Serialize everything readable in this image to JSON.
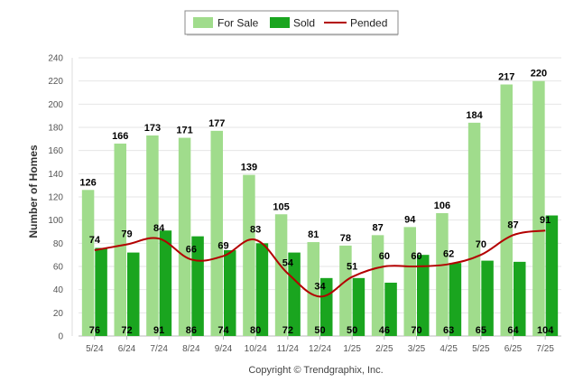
{
  "chart_data": {
    "type": "bar",
    "categories": [
      "5/24",
      "6/24",
      "7/24",
      "8/24",
      "9/24",
      "10/24",
      "11/24",
      "12/24",
      "1/25",
      "2/25",
      "3/25",
      "4/25",
      "5/25",
      "6/25",
      "7/25"
    ],
    "series": [
      {
        "name": "For Sale",
        "kind": "bar",
        "color": "#a0dc8c",
        "values": [
          126,
          166,
          173,
          171,
          177,
          139,
          105,
          81,
          78,
          87,
          94,
          106,
          184,
          217,
          220
        ]
      },
      {
        "name": "Sold",
        "kind": "bar",
        "color": "#1aa51f",
        "values": [
          76,
          72,
          91,
          86,
          74,
          80,
          72,
          50,
          50,
          46,
          70,
          63,
          65,
          64,
          104
        ]
      },
      {
        "name": "Pended",
        "kind": "line",
        "color": "#b30000",
        "values": [
          74,
          79,
          84,
          66,
          69,
          83,
          54,
          34,
          51,
          60,
          60,
          62,
          70,
          87,
          91
        ]
      }
    ],
    "ylabel": "Number of Homes",
    "xlabel": "",
    "ylim": [
      0,
      240
    ],
    "yticks": [
      0,
      20,
      40,
      60,
      80,
      100,
      120,
      140,
      160,
      180,
      200,
      220,
      240
    ],
    "grid": true,
    "legend": "top-center",
    "footer": "Copyright © Trendgraphix, Inc."
  }
}
